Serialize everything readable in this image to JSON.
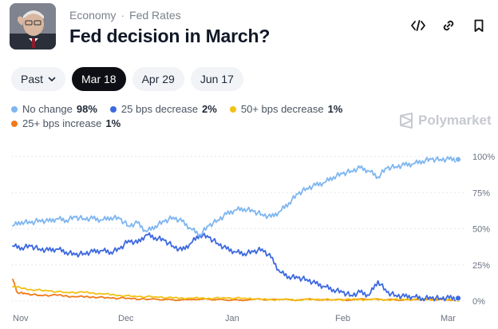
{
  "header": {
    "breadcrumb": [
      "Economy",
      "Fed Rates"
    ],
    "breadcrumb_separator": "·",
    "title": "Fed decision in March?",
    "icons": [
      "embed-icon",
      "link-icon",
      "bookmark-icon"
    ]
  },
  "tabs": [
    {
      "label": "Past",
      "has_dropdown": true,
      "active": false
    },
    {
      "label": "Mar 18",
      "active": true
    },
    {
      "label": "Apr 29",
      "active": false
    },
    {
      "label": "Jun 17",
      "active": false
    }
  ],
  "legend": [
    {
      "label": "No change",
      "value": "98%",
      "color": "#7fb6f0"
    },
    {
      "label": "25 bps decrease",
      "value": "2%",
      "color": "#3d69e0"
    },
    {
      "label": "50+ bps decrease",
      "value": "1%",
      "color": "#f2c114"
    },
    {
      "label": "25+ bps increase",
      "value": "1%",
      "color": "#f07a1a"
    }
  ],
  "watermark": "Polymarket",
  "chart_data": {
    "type": "line",
    "x_labels": [
      "Nov",
      "Dec",
      "Jan",
      "Feb",
      "Mar"
    ],
    "y_ticks": [
      "100%",
      "75%",
      "50%",
      "25%",
      "0%"
    ],
    "ylim": [
      0,
      100
    ],
    "grid": true,
    "series": [
      {
        "name": "No change",
        "color": "#7fb6f0",
        "points": [
          [
            0.0,
            52
          ],
          [
            0.02,
            55
          ],
          [
            0.04,
            54
          ],
          [
            0.06,
            56
          ],
          [
            0.08,
            55
          ],
          [
            0.1,
            57
          ],
          [
            0.12,
            56
          ],
          [
            0.14,
            58
          ],
          [
            0.16,
            57
          ],
          [
            0.18,
            57
          ],
          [
            0.2,
            56
          ],
          [
            0.22,
            58
          ],
          [
            0.24,
            57
          ],
          [
            0.26,
            52
          ],
          [
            0.28,
            54
          ],
          [
            0.3,
            48
          ],
          [
            0.32,
            52
          ],
          [
            0.34,
            55
          ],
          [
            0.36,
            58
          ],
          [
            0.38,
            55
          ],
          [
            0.4,
            50
          ],
          [
            0.42,
            46
          ],
          [
            0.44,
            52
          ],
          [
            0.46,
            56
          ],
          [
            0.48,
            60
          ],
          [
            0.5,
            63
          ],
          [
            0.52,
            64
          ],
          [
            0.54,
            62
          ],
          [
            0.56,
            60
          ],
          [
            0.58,
            58
          ],
          [
            0.6,
            62
          ],
          [
            0.62,
            68
          ],
          [
            0.64,
            74
          ],
          [
            0.66,
            78
          ],
          [
            0.68,
            80
          ],
          [
            0.7,
            82
          ],
          [
            0.72,
            86
          ],
          [
            0.74,
            88
          ],
          [
            0.76,
            90
          ],
          [
            0.78,
            92
          ],
          [
            0.8,
            90
          ],
          [
            0.82,
            86
          ],
          [
            0.84,
            92
          ],
          [
            0.86,
            93
          ],
          [
            0.88,
            94
          ],
          [
            0.9,
            95
          ],
          [
            0.92,
            97
          ],
          [
            0.94,
            98
          ],
          [
            0.96,
            98
          ],
          [
            0.98,
            98
          ],
          [
            1.0,
            98
          ]
        ]
      },
      {
        "name": "25 bps decrease",
        "color": "#3d69e0",
        "points": [
          [
            0.0,
            38
          ],
          [
            0.02,
            37
          ],
          [
            0.04,
            38
          ],
          [
            0.06,
            36
          ],
          [
            0.08,
            35
          ],
          [
            0.1,
            36
          ],
          [
            0.12,
            34
          ],
          [
            0.14,
            32
          ],
          [
            0.16,
            33
          ],
          [
            0.18,
            34
          ],
          [
            0.2,
            35
          ],
          [
            0.22,
            34
          ],
          [
            0.24,
            36
          ],
          [
            0.26,
            42
          ],
          [
            0.28,
            40
          ],
          [
            0.3,
            46
          ],
          [
            0.32,
            44
          ],
          [
            0.34,
            42
          ],
          [
            0.36,
            38
          ],
          [
            0.38,
            35
          ],
          [
            0.4,
            40
          ],
          [
            0.42,
            46
          ],
          [
            0.44,
            44
          ],
          [
            0.46,
            40
          ],
          [
            0.48,
            36
          ],
          [
            0.5,
            34
          ],
          [
            0.52,
            33
          ],
          [
            0.54,
            34
          ],
          [
            0.56,
            36
          ],
          [
            0.58,
            30
          ],
          [
            0.6,
            20
          ],
          [
            0.62,
            17
          ],
          [
            0.64,
            16
          ],
          [
            0.66,
            15
          ],
          [
            0.68,
            12
          ],
          [
            0.7,
            10
          ],
          [
            0.72,
            8
          ],
          [
            0.74,
            6
          ],
          [
            0.76,
            4
          ],
          [
            0.78,
            6
          ],
          [
            0.8,
            4
          ],
          [
            0.82,
            14
          ],
          [
            0.84,
            6
          ],
          [
            0.86,
            4
          ],
          [
            0.88,
            3
          ],
          [
            0.9,
            3
          ],
          [
            0.92,
            2
          ],
          [
            0.94,
            2
          ],
          [
            0.96,
            2
          ],
          [
            0.98,
            2
          ],
          [
            1.0,
            2
          ]
        ]
      },
      {
        "name": "50+ bps decrease",
        "color": "#f2c114",
        "points": [
          [
            0.0,
            10
          ],
          [
            0.04,
            8
          ],
          [
            0.08,
            7
          ],
          [
            0.12,
            6
          ],
          [
            0.16,
            6
          ],
          [
            0.2,
            5
          ],
          [
            0.24,
            4
          ],
          [
            0.28,
            3
          ],
          [
            0.32,
            3
          ],
          [
            0.36,
            2
          ],
          [
            0.4,
            2
          ],
          [
            0.44,
            2
          ],
          [
            0.48,
            2
          ],
          [
            0.52,
            2
          ],
          [
            0.56,
            1
          ],
          [
            0.6,
            1
          ],
          [
            0.64,
            1
          ],
          [
            0.68,
            1
          ],
          [
            0.72,
            1
          ],
          [
            0.76,
            1
          ],
          [
            0.8,
            1
          ],
          [
            0.84,
            1
          ],
          [
            0.88,
            1
          ],
          [
            0.92,
            1
          ],
          [
            0.96,
            1
          ],
          [
            1.0,
            1
          ]
        ]
      },
      {
        "name": "25+ bps increase",
        "color": "#f07a1a",
        "points": [
          [
            0.0,
            15
          ],
          [
            0.01,
            6
          ],
          [
            0.03,
            5
          ],
          [
            0.06,
            4
          ],
          [
            0.1,
            4
          ],
          [
            0.14,
            3
          ],
          [
            0.18,
            3
          ],
          [
            0.22,
            2
          ],
          [
            0.26,
            2
          ],
          [
            0.3,
            1
          ],
          [
            0.4,
            1
          ],
          [
            0.5,
            1
          ],
          [
            0.6,
            1
          ],
          [
            0.7,
            1
          ],
          [
            0.8,
            1
          ],
          [
            0.9,
            1
          ],
          [
            1.0,
            1
          ]
        ]
      }
    ]
  }
}
